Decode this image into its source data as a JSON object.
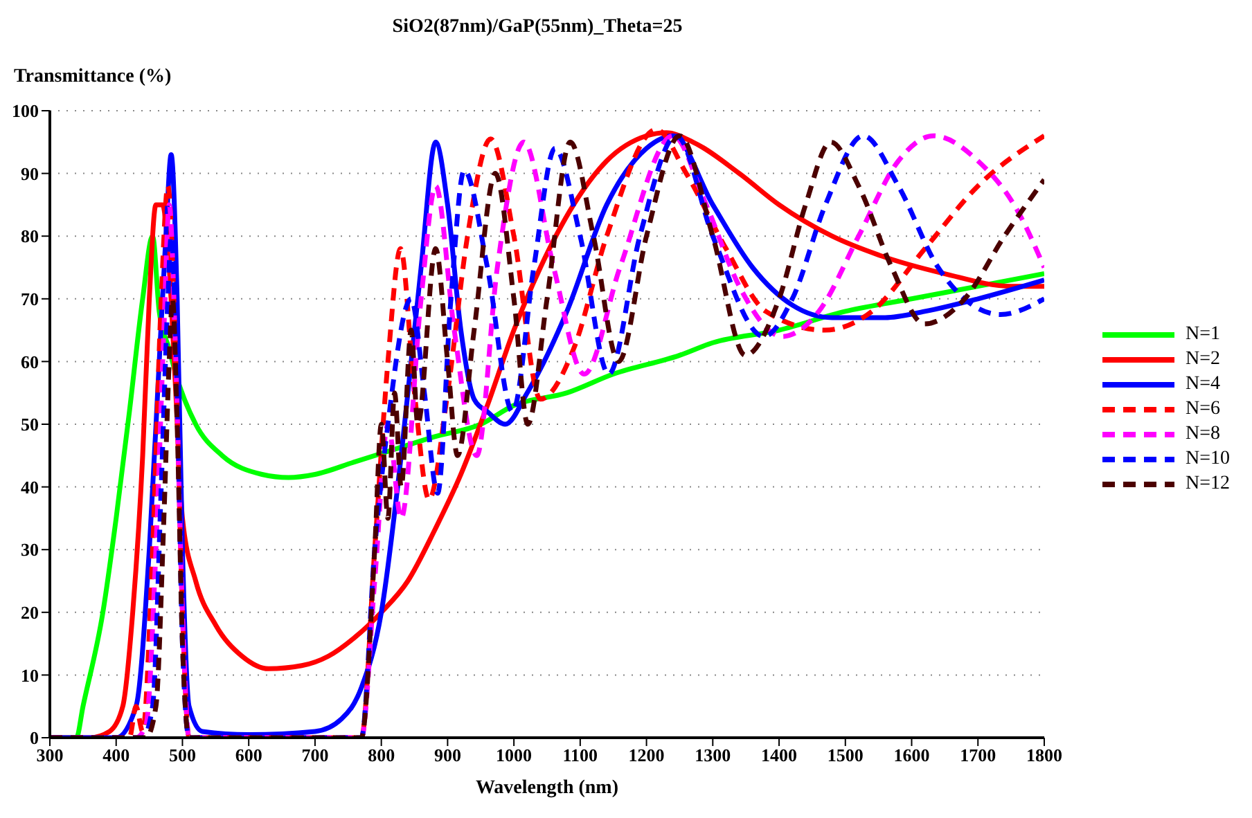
{
  "chart_data": {
    "type": "line",
    "title": "SiO2(87nm)/GaP(55nm)_Theta=25",
    "xlabel": "Wavelength (nm)",
    "ylabel": "Transmittance (%)",
    "xlim": [
      300,
      1800
    ],
    "xticks": [
      300,
      400,
      500,
      600,
      700,
      800,
      900,
      1000,
      1100,
      1200,
      1300,
      1400,
      1500,
      1600,
      1700,
      1800
    ],
    "ylim": [
      0,
      100
    ],
    "yticks": [
      0,
      10,
      20,
      30,
      40,
      50,
      60,
      70,
      80,
      90,
      100
    ],
    "grid": "y",
    "legend": "right",
    "marker": "none",
    "series": [
      {
        "name": "N=1",
        "color": "#00ff00",
        "line_style": "solid",
        "x": [
          300,
          340,
          350,
          380,
          400,
          420,
          440,
          455,
          465,
          480,
          490,
          520,
          560,
          620,
          660,
          700,
          760,
          820,
          880,
          950,
          1000,
          1080,
          1150,
          1250,
          1300,
          1400,
          1500,
          1600,
          1700,
          1800
        ],
        "values": [
          0,
          0,
          5,
          20,
          35,
          52,
          70,
          80,
          68,
          62,
          58,
          50,
          45,
          42,
          41.5,
          42,
          44,
          46,
          48,
          50,
          53,
          55,
          58,
          61,
          63,
          65,
          68,
          70,
          72,
          74
        ]
      },
      {
        "name": "N=2",
        "color": "#ff0000",
        "line_style": "solid",
        "x": [
          300,
          360,
          390,
          410,
          425,
          440,
          450,
          460,
          470,
          480,
          490,
          500,
          520,
          550,
          590,
          630,
          680,
          720,
          760,
          800,
          840,
          880,
          920,
          960,
          1000,
          1040,
          1090,
          1140,
          1200,
          1230,
          1270,
          1340,
          1400,
          1480,
          1550,
          1650,
          1750,
          1800
        ],
        "values": [
          0,
          0,
          1,
          5,
          20,
          45,
          70,
          85,
          85,
          75,
          55,
          35,
          25,
          18,
          13,
          11,
          11.5,
          13,
          16,
          20,
          25,
          33,
          42,
          53,
          65,
          75,
          85,
          92,
          96,
          96.5,
          95,
          90,
          85,
          80,
          77,
          74,
          72,
          72
        ]
      },
      {
        "name": "N=4",
        "color": "#0000ff",
        "line_style": "solid",
        "x": [
          300,
          400,
          430,
          450,
          465,
          475,
          483,
          492,
          500,
          510,
          530,
          600,
          700,
          740,
          770,
          800,
          830,
          860,
          882,
          900,
          920,
          940,
          960,
          987,
          1020,
          1080,
          1140,
          1200,
          1240,
          1300,
          1360,
          1420,
          1480,
          1560,
          1620,
          1700,
          1800
        ],
        "values": [
          0,
          0,
          5,
          30,
          60,
          80,
          93,
          70,
          30,
          5,
          1,
          0.5,
          1,
          3,
          8,
          20,
          45,
          75,
          95,
          85,
          65,
          54,
          52,
          50,
          55,
          68,
          85,
          94,
          96,
          85,
          75,
          69,
          67,
          67,
          68,
          70,
          73
        ]
      },
      {
        "name": "N=6",
        "color": "#ff0000",
        "line_style": "dashed",
        "x": [
          300,
          420,
          430,
          440,
          455,
          468,
          478,
          490,
          500,
          510,
          770,
          790,
          810,
          829,
          850,
          872,
          900,
          930,
          965,
          1000,
          1040,
          1090,
          1140,
          1215,
          1260,
          1320,
          1380,
          1469,
          1540,
          1620,
          1700,
          1800
        ],
        "values": [
          0,
          0,
          5,
          1,
          30,
          70,
          88,
          60,
          20,
          0,
          0,
          30,
          60,
          78,
          55,
          38,
          55,
          80,
          95.5,
          80,
          54,
          62,
          80,
          97,
          90,
          78,
          68,
          65,
          68,
          78,
          88,
          96
        ]
      },
      {
        "name": "N=8",
        "color": "#ff00ff",
        "line_style": "dashed",
        "x": [
          300,
          430,
          445,
          460,
          472,
          480,
          490,
          500,
          510,
          770,
          790,
          810,
          830,
          860,
          882,
          910,
          944,
          975,
          1015,
          1060,
          1106,
          1160,
          1240,
          1290,
          1340,
          1405,
          1460,
          1520,
          1580,
          1633,
          1700,
          1760,
          1800
        ],
        "values": [
          0,
          0,
          2,
          30,
          65,
          85,
          60,
          20,
          0,
          0,
          25,
          50,
          35,
          70,
          88,
          65,
          45,
          75,
          95,
          75,
          58,
          75,
          96,
          85,
          72,
          64,
          68,
          80,
          92,
          96,
          92,
          84,
          75
        ]
      },
      {
        "name": "N=10",
        "color": "#0000ff",
        "line_style": "dashed",
        "x": [
          300,
          440,
          455,
          468,
          478,
          483,
          492,
          500,
          510,
          770,
          790,
          810,
          845,
          865,
          885,
          905,
          925,
          960,
          998,
          1030,
          1062,
          1100,
          1143,
          1190,
          1245,
          1300,
          1377,
          1420,
          1470,
          1527,
          1580,
          1640,
          1734,
          1800
        ],
        "values": [
          0,
          0,
          5,
          40,
          70,
          80,
          55,
          15,
          0,
          0,
          30,
          50,
          70,
          55,
          39,
          70,
          90.5,
          75,
          52,
          75,
          94,
          80,
          58,
          80,
          96,
          80,
          64,
          70,
          85,
          96,
          88,
          75,
          67.5,
          70
        ]
      },
      {
        "name": "N=12",
        "color": "#4b0000",
        "line_style": "dashed",
        "x": [
          300,
          445,
          460,
          472,
          480,
          485,
          492,
          500,
          510,
          770,
          790,
          800,
          810,
          820,
          830,
          845,
          855,
          882,
          900,
          915,
          940,
          972,
          1000,
          1021,
          1050,
          1085,
          1120,
          1158,
          1200,
          1250,
          1300,
          1349,
          1400,
          1440,
          1478,
          1520,
          1570,
          1619,
          1680,
          1740,
          1800
        ],
        "values": [
          0,
          0,
          5,
          35,
          60,
          70,
          50,
          15,
          0,
          0,
          30,
          50,
          35,
          55,
          40,
          65,
          50,
          78,
          60,
          45,
          65,
          90,
          70,
          50,
          70,
          95,
          80,
          60,
          80,
          96,
          80,
          61,
          70,
          85,
          95,
          88,
          75,
          66,
          70,
          80,
          89
        ]
      }
    ]
  }
}
